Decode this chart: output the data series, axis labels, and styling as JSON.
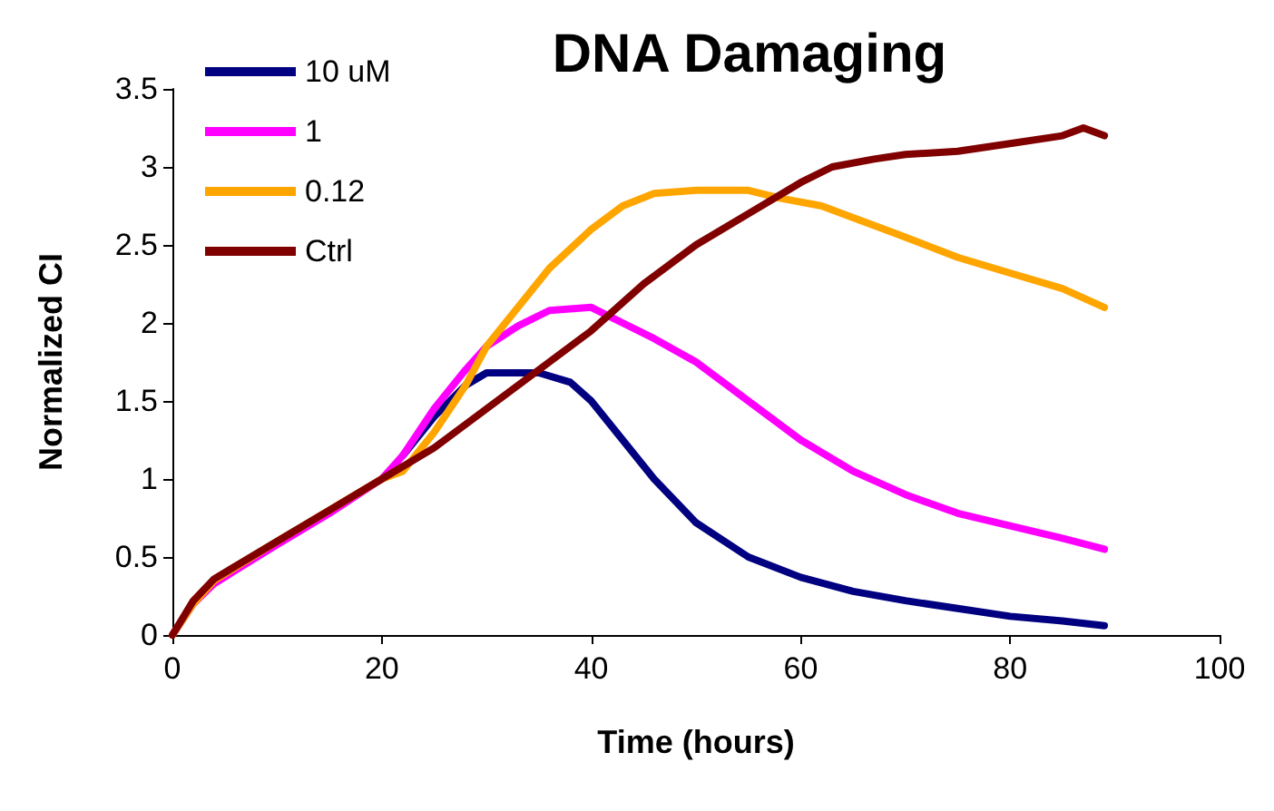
{
  "chart_data": {
    "type": "line",
    "title": "DNA Damaging",
    "xlabel": "Time (hours)",
    "ylabel": "Normalized CI",
    "xlim": [
      0,
      100
    ],
    "xticks": [
      0,
      20,
      40,
      60,
      80,
      100
    ],
    "ylim": [
      0,
      3.5
    ],
    "yticks": [
      0,
      0.5,
      1,
      1.5,
      2,
      2.5,
      3,
      3.5
    ],
    "grid": false,
    "legend": "top left",
    "marker": "none",
    "line_style": "solid",
    "series": [
      {
        "name": "10 uM",
        "color": "#000080",
        "x": [
          22,
          25,
          28,
          30,
          35,
          38,
          40,
          43,
          46,
          50,
          55,
          60,
          65,
          70,
          75,
          80,
          85,
          89
        ],
        "values": [
          1.15,
          1.4,
          1.6,
          1.68,
          1.68,
          1.62,
          1.5,
          1.25,
          1.0,
          0.72,
          0.5,
          0.37,
          0.28,
          0.22,
          0.17,
          0.12,
          0.09,
          0.06
        ]
      },
      {
        "name": "1",
        "color": "#ff00ff",
        "x": [
          0,
          2,
          4,
          10,
          15,
          20,
          22,
          25,
          28,
          30,
          33,
          36,
          40,
          43,
          46,
          50,
          55,
          60,
          65,
          70,
          75,
          80,
          85,
          89
        ],
        "values": [
          0,
          0.2,
          0.33,
          0.58,
          0.78,
          1.0,
          1.15,
          1.45,
          1.7,
          1.85,
          1.98,
          2.08,
          2.1,
          2.0,
          1.9,
          1.75,
          1.5,
          1.25,
          1.05,
          0.9,
          0.78,
          0.7,
          0.62,
          0.55
        ]
      },
      {
        "name": "0.12",
        "color": "#ffa500",
        "x": [
          0,
          2,
          4,
          10,
          15,
          20,
          22,
          25,
          28,
          30,
          33,
          36,
          40,
          43,
          46,
          50,
          55,
          58,
          62,
          66,
          70,
          75,
          80,
          85,
          89
        ],
        "values": [
          0,
          0.2,
          0.35,
          0.6,
          0.8,
          1.0,
          1.05,
          1.3,
          1.6,
          1.85,
          2.1,
          2.35,
          2.6,
          2.75,
          2.83,
          2.85,
          2.85,
          2.8,
          2.75,
          2.65,
          2.55,
          2.42,
          2.32,
          2.22,
          2.1
        ]
      },
      {
        "name": "Ctrl",
        "color": "#800000",
        "x": [
          0,
          2,
          4,
          10,
          15,
          20,
          25,
          30,
          35,
          40,
          45,
          50,
          55,
          60,
          63,
          67,
          70,
          75,
          80,
          85,
          87,
          89
        ],
        "values": [
          0,
          0.22,
          0.36,
          0.6,
          0.8,
          1.0,
          1.2,
          1.45,
          1.7,
          1.95,
          2.25,
          2.5,
          2.7,
          2.9,
          3.0,
          3.05,
          3.08,
          3.1,
          3.15,
          3.2,
          3.25,
          3.2
        ]
      }
    ]
  }
}
